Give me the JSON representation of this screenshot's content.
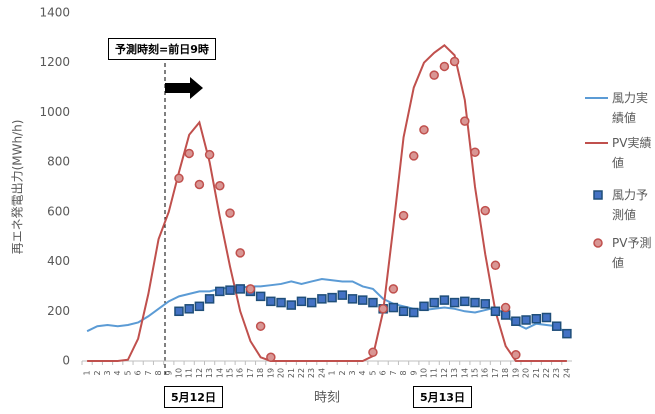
{
  "chart_data": {
    "type": "line",
    "ylabel": "再エネ発電出力(MWh/h)",
    "xlabel": "時刻",
    "forecast_note": "予測時刻=前日9時",
    "date_labels": [
      "5月12日",
      "5月13日"
    ],
    "categories": [
      1,
      2,
      3,
      4,
      5,
      6,
      7,
      8,
      9,
      10,
      11,
      12,
      13,
      14,
      15,
      16,
      17,
      18,
      19,
      20,
      21,
      22,
      23,
      24,
      1,
      2,
      3,
      4,
      5,
      6,
      7,
      8,
      9,
      10,
      11,
      12,
      13,
      14,
      15,
      16,
      17,
      18,
      19,
      20,
      21,
      22,
      23,
      24
    ],
    "ylim": [
      0,
      1400
    ],
    "yticks": [
      0,
      200,
      400,
      600,
      800,
      1000,
      1200,
      1400
    ],
    "grid": false,
    "series": [
      {
        "name": "風力実績値",
        "color": "#5b9bd5",
        "style": "line",
        "values": [
          120,
          140,
          145,
          140,
          145,
          155,
          180,
          210,
          240,
          260,
          270,
          280,
          280,
          290,
          295,
          295,
          300,
          300,
          305,
          310,
          320,
          310,
          320,
          330,
          325,
          320,
          320,
          300,
          290,
          250,
          230,
          220,
          210,
          205,
          210,
          215,
          210,
          200,
          195,
          205,
          215,
          185,
          150,
          130,
          150,
          145,
          140,
          110
        ]
      },
      {
        "name": "PV実績値",
        "color": "#c0504d",
        "style": "line",
        "values": [
          0,
          0,
          0,
          0,
          5,
          90,
          270,
          490,
          600,
          760,
          910,
          960,
          800,
          580,
          380,
          200,
          80,
          15,
          0,
          0,
          0,
          0,
          0,
          0,
          0,
          0,
          0,
          0,
          20,
          200,
          540,
          900,
          1100,
          1200,
          1240,
          1270,
          1230,
          1050,
          700,
          430,
          200,
          60,
          0,
          0,
          0,
          0,
          0,
          0
        ]
      },
      {
        "name": "風力予測値",
        "color": "#1f4e79",
        "style": "square",
        "values": [
          null,
          null,
          null,
          null,
          null,
          null,
          null,
          null,
          null,
          200,
          210,
          220,
          250,
          280,
          285,
          290,
          280,
          260,
          240,
          235,
          225,
          240,
          235,
          250,
          255,
          265,
          250,
          245,
          235,
          210,
          215,
          200,
          195,
          220,
          235,
          245,
          235,
          240,
          235,
          230,
          200,
          185,
          160,
          165,
          170,
          175,
          140,
          110
        ]
      },
      {
        "name": "PV予測値",
        "color": "#c0504d",
        "style": "circle",
        "values": [
          null,
          null,
          null,
          null,
          null,
          null,
          null,
          null,
          null,
          735,
          835,
          710,
          830,
          705,
          595,
          435,
          290,
          140,
          15,
          null,
          null,
          null,
          null,
          null,
          null,
          null,
          null,
          null,
          35,
          210,
          290,
          585,
          825,
          930,
          1150,
          1185,
          1205,
          965,
          840,
          605,
          385,
          215,
          25,
          null,
          null,
          null,
          null,
          null
        ]
      }
    ]
  }
}
